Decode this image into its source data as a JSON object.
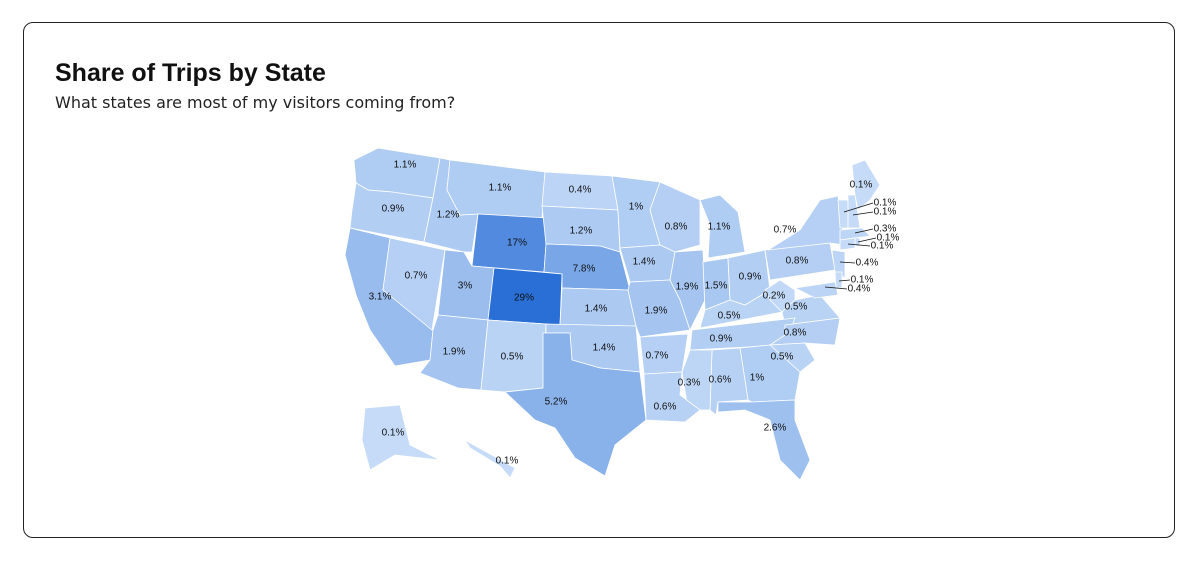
{
  "chart_data": {
    "type": "choropleth",
    "title": "Share of Trips by State",
    "subtitle": "What states are most of my visitors coming from?",
    "colors": [
      "#cfe2f9",
      "#2a6fd6"
    ],
    "values": [
      1.1,
      0.9,
      1.2,
      1.1,
      17,
      0.4,
      1.2,
      1,
      0.8,
      1.1,
      7.8,
      1.4,
      3.1,
      0.7,
      3,
      29,
      1.4,
      1.9,
      1.9,
      1.5,
      0.9,
      0.5,
      0.2,
      0.5,
      0.8,
      0.7,
      0.1,
      0.1,
      0.1,
      0.3,
      0.1,
      0.1,
      0.4,
      0.1,
      0.4,
      1.9,
      0.5,
      1.4,
      5.2,
      0.7,
      0.9,
      0.8,
      0.5,
      1,
      0.6,
      0.3,
      0.6,
      2.6,
      0.1,
      0.1
    ],
    "value_labels": [
      "1.1%",
      "0.9%",
      "1.2%",
      "1.1%",
      "17%",
      "0.4%",
      "1.2%",
      "1%",
      "0.8%",
      "1.1%",
      "7.8%",
      "1.4%",
      "3.1%",
      "0.7%",
      "3%",
      "29%",
      "1.4%",
      "1.9%",
      "1.9%",
      "1.5%",
      "0.9%",
      "0.5%",
      "0.2%",
      "0.5%",
      "0.8%",
      "0.7%",
      "0.1%",
      "0.1%",
      "0.1%",
      "0.3%",
      "0.1%",
      "0.1%",
      "0.4%",
      "0.1%",
      "0.4%",
      "1.9%",
      "0.5%",
      "1.4%",
      "5.2%",
      "0.7%",
      "0.9%",
      "0.8%",
      "0.5%",
      "1%",
      "0.6%",
      "0.3%",
      "0.6%",
      "2.6%",
      "0.1%",
      "0.1%"
    ]
  }
}
